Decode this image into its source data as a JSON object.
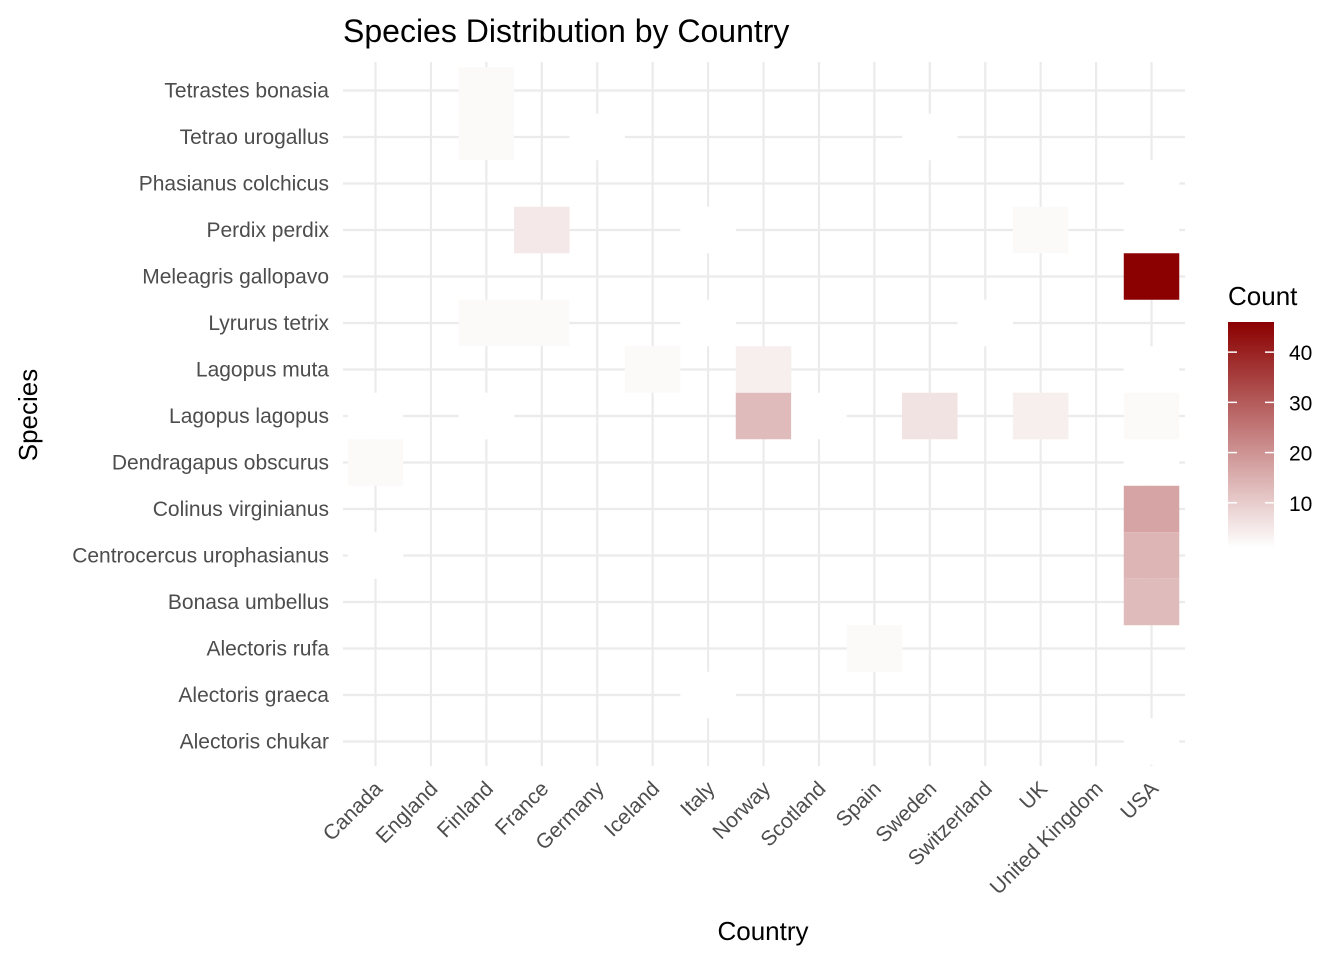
{
  "chart_data": {
    "type": "heatmap",
    "title": "Species Distribution by Country",
    "xlabel": "Country",
    "ylabel": "Species",
    "x_categories": [
      "Canada",
      "England",
      "Finland",
      "France",
      "Germany",
      "Iceland",
      "Italy",
      "Norway",
      "Scotland",
      "Spain",
      "Sweden",
      "Switzerland",
      "UK",
      "United Kingdom",
      "USA"
    ],
    "y_categories": [
      "Alectoris chukar",
      "Alectoris graeca",
      "Alectoris rufa",
      "Bonasa umbellus",
      "Centrocercus urophasianus",
      "Colinus virginianus",
      "Dendragapus obscurus",
      "Lagopus lagopus",
      "Lagopus muta",
      "Lyrurus tetrix",
      "Meleagris gallopavo",
      "Perdix perdix",
      "Phasianus colchicus",
      "Tetrao urogallus",
      "Tetrastes bonasia"
    ],
    "cells": [
      {
        "x": "Finland",
        "y": "Tetrastes bonasia",
        "value": 2
      },
      {
        "x": "Finland",
        "y": "Tetrao urogallus",
        "value": 2
      },
      {
        "x": "Germany",
        "y": "Tetrao urogallus",
        "value": 1
      },
      {
        "x": "Sweden",
        "y": "Tetrao urogallus",
        "value": 1
      },
      {
        "x": "France",
        "y": "Perdix perdix",
        "value": 5
      },
      {
        "x": "Italy",
        "y": "Perdix perdix",
        "value": 1
      },
      {
        "x": "UK",
        "y": "Perdix perdix",
        "value": 2
      },
      {
        "x": "USA",
        "y": "Perdix perdix",
        "value": 1
      },
      {
        "x": "USA",
        "y": "Phasianus colchicus",
        "value": 1
      },
      {
        "x": "USA",
        "y": "Meleagris gallopavo",
        "value": 46
      },
      {
        "x": "Finland",
        "y": "Lyrurus tetrix",
        "value": 2
      },
      {
        "x": "France",
        "y": "Lyrurus tetrix",
        "value": 2
      },
      {
        "x": "Italy",
        "y": "Lyrurus tetrix",
        "value": 1
      },
      {
        "x": "Switzerland",
        "y": "Lyrurus tetrix",
        "value": 1
      },
      {
        "x": "Iceland",
        "y": "Lagopus muta",
        "value": 2
      },
      {
        "x": "Norway",
        "y": "Lagopus muta",
        "value": 4
      },
      {
        "x": "USA",
        "y": "Lagopus muta",
        "value": 1
      },
      {
        "x": "Canada",
        "y": "Lagopus lagopus",
        "value": 1
      },
      {
        "x": "Finland",
        "y": "Lagopus lagopus",
        "value": 1
      },
      {
        "x": "Norway",
        "y": "Lagopus lagopus",
        "value": 13
      },
      {
        "x": "Scotland",
        "y": "Lagopus lagopus",
        "value": 1
      },
      {
        "x": "Sweden",
        "y": "Lagopus lagopus",
        "value": 6
      },
      {
        "x": "UK",
        "y": "Lagopus lagopus",
        "value": 4
      },
      {
        "x": "USA",
        "y": "Lagopus lagopus",
        "value": 2
      },
      {
        "x": "Canada",
        "y": "Dendragapus obscurus",
        "value": 2
      },
      {
        "x": "USA",
        "y": "Dendragapus obscurus",
        "value": 1
      },
      {
        "x": "USA",
        "y": "Colinus virginianus",
        "value": 17
      },
      {
        "x": "Canada",
        "y": "Centrocercus urophasianus",
        "value": 1
      },
      {
        "x": "USA",
        "y": "Centrocercus urophasianus",
        "value": 14
      },
      {
        "x": "USA",
        "y": "Bonasa umbellus",
        "value": 13
      },
      {
        "x": "Spain",
        "y": "Alectoris rufa",
        "value": 2
      },
      {
        "x": "Italy",
        "y": "Alectoris graeca",
        "value": 1
      },
      {
        "x": "USA",
        "y": "Alectoris chukar",
        "value": 1
      }
    ],
    "color_scale": {
      "low": "#ffffff",
      "high": "#8b0000",
      "min": 1,
      "max": 46
    },
    "legend": {
      "title": "Count",
      "position": "right",
      "breaks": [
        10,
        20,
        30,
        40
      ],
      "break_labels": [
        "10",
        "20",
        "30",
        "40"
      ]
    },
    "grid": true
  }
}
